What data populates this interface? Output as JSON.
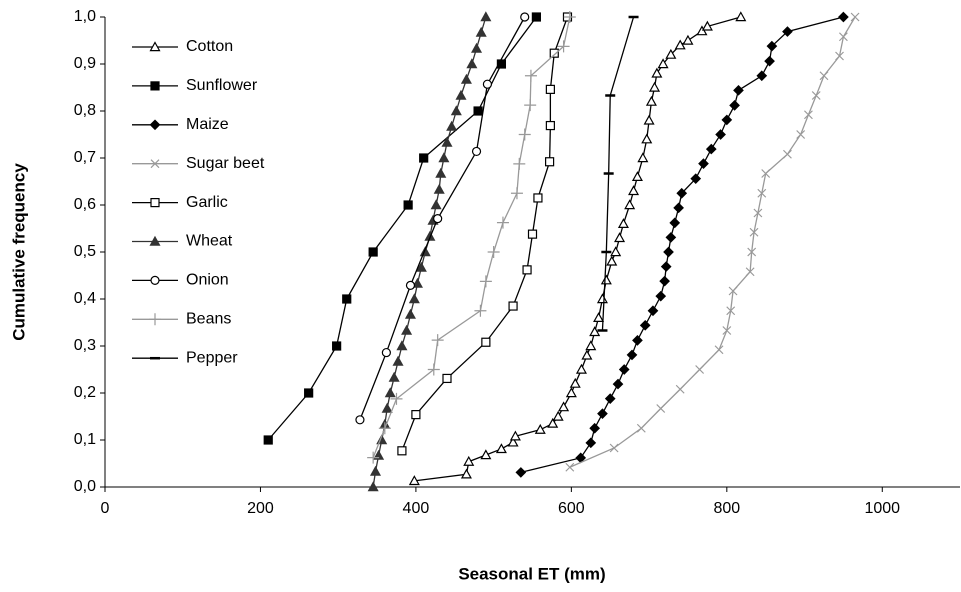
{
  "chart_data": {
    "type": "line",
    "xlabel": "Seasonal ET (mm)",
    "ylabel": "Cumulative frequency",
    "xlim": [
      0,
      1100
    ],
    "xticks": [
      0,
      200,
      400,
      600,
      800,
      1000
    ],
    "ylim": [
      0,
      1
    ],
    "yticks": [
      {
        "value": 0,
        "label": "0,0"
      },
      {
        "value": 0.1,
        "label": "0,1"
      },
      {
        "value": 0.2,
        "label": "0,2"
      },
      {
        "value": 0.3,
        "label": "0,3"
      },
      {
        "value": 0.4,
        "label": "0,4"
      },
      {
        "value": 0.5,
        "label": "0,5"
      },
      {
        "value": 0.6,
        "label": "0,6"
      },
      {
        "value": 0.7,
        "label": "0,7"
      },
      {
        "value": 0.8,
        "label": "0,8"
      },
      {
        "value": 0.9,
        "label": "0,9"
      },
      {
        "value": 1,
        "label": "1,0"
      }
    ],
    "grid": false,
    "legend": "top-left",
    "series": [
      {
        "name": "Cotton",
        "color": "#000000",
        "marker": "triangle-open",
        "x": [
          398,
          465,
          468,
          490,
          510,
          525,
          528,
          560,
          576,
          583,
          590,
          600,
          605,
          613,
          620,
          625,
          630,
          635,
          640,
          645,
          652,
          657,
          662,
          667,
          675,
          680,
          685,
          692,
          697,
          700,
          703,
          707,
          710,
          718,
          728,
          740,
          750,
          768,
          775,
          818
        ],
        "values": [
          0.013,
          0.027,
          0.054,
          0.068,
          0.081,
          0.095,
          0.108,
          0.122,
          0.135,
          0.15,
          0.17,
          0.2,
          0.22,
          0.25,
          0.28,
          0.3,
          0.33,
          0.36,
          0.4,
          0.44,
          0.48,
          0.5,
          0.53,
          0.56,
          0.6,
          0.63,
          0.66,
          0.7,
          0.74,
          0.78,
          0.82,
          0.85,
          0.88,
          0.9,
          0.92,
          0.94,
          0.95,
          0.97,
          0.98,
          1.0
        ]
      },
      {
        "name": "Sunflower",
        "color": "#000000",
        "marker": "square",
        "x": [
          210,
          262,
          298,
          311,
          345,
          390,
          410,
          480,
          510,
          555
        ],
        "values": [
          0.1,
          0.2,
          0.3,
          0.4,
          0.5,
          0.6,
          0.7,
          0.8,
          0.9,
          1.0
        ]
      },
      {
        "name": "Maize",
        "color": "#000000",
        "marker": "diamond",
        "x": [
          535,
          612,
          625,
          630,
          640,
          650,
          660,
          668,
          678,
          685,
          695,
          705,
          715,
          720,
          722,
          725,
          728,
          733,
          738,
          742,
          760,
          770,
          780,
          792,
          800,
          810,
          815,
          845,
          855,
          858,
          878,
          950
        ],
        "values": [
          0.031,
          0.062,
          0.094,
          0.125,
          0.156,
          0.188,
          0.219,
          0.25,
          0.281,
          0.312,
          0.344,
          0.375,
          0.406,
          0.438,
          0.469,
          0.5,
          0.531,
          0.562,
          0.594,
          0.625,
          0.656,
          0.688,
          0.719,
          0.75,
          0.781,
          0.812,
          0.844,
          0.875,
          0.906,
          0.938,
          0.969,
          1.0
        ]
      },
      {
        "name": "Sugar beet",
        "color": "#999999",
        "marker": "x",
        "x": [
          598,
          655,
          690,
          715,
          740,
          765,
          790,
          800,
          805,
          808,
          830,
          832,
          835,
          840,
          845,
          850,
          878,
          895,
          905,
          915,
          925,
          945,
          950,
          965
        ],
        "values": [
          0.042,
          0.083,
          0.125,
          0.167,
          0.208,
          0.25,
          0.292,
          0.333,
          0.375,
          0.417,
          0.458,
          0.5,
          0.542,
          0.583,
          0.625,
          0.667,
          0.708,
          0.75,
          0.792,
          0.833,
          0.875,
          0.917,
          0.958,
          1.0
        ]
      },
      {
        "name": "Garlic",
        "color": "#000000",
        "marker": "square-open",
        "x": [
          382,
          400,
          440,
          490,
          525,
          543,
          550,
          557,
          572,
          573,
          573,
          578,
          595
        ],
        "values": [
          0.077,
          0.154,
          0.231,
          0.308,
          0.385,
          0.462,
          0.538,
          0.615,
          0.692,
          0.769,
          0.846,
          0.923,
          1.0
        ]
      },
      {
        "name": "Wheat",
        "color": "#333333",
        "marker": "triangle",
        "x": [
          345,
          348,
          352,
          356,
          360,
          363,
          367,
          372,
          377,
          382,
          388,
          393,
          398,
          402,
          407,
          412,
          418,
          422,
          426,
          430,
          432,
          436,
          440,
          446,
          452,
          458,
          465,
          472,
          478,
          484,
          490
        ],
        "values": [
          0,
          0.033,
          0.067,
          0.1,
          0.133,
          0.167,
          0.2,
          0.233,
          0.267,
          0.3,
          0.333,
          0.367,
          0.4,
          0.433,
          0.467,
          0.5,
          0.533,
          0.567,
          0.6,
          0.633,
          0.667,
          0.7,
          0.733,
          0.767,
          0.8,
          0.833,
          0.867,
          0.9,
          0.933,
          0.967,
          1.0
        ]
      },
      {
        "name": "Onion",
        "color": "#000000",
        "marker": "circle-open",
        "x": [
          328,
          362,
          393,
          428,
          478,
          492,
          540
        ],
        "values": [
          0.143,
          0.286,
          0.429,
          0.571,
          0.714,
          0.857,
          1.0
        ]
      },
      {
        "name": "Beans",
        "color": "#999999",
        "marker": "plus",
        "x": [
          345,
          360,
          375,
          423,
          428,
          483,
          490,
          500,
          512,
          530,
          533,
          540,
          547,
          548,
          590,
          598
        ],
        "values": [
          0.0625,
          0.125,
          0.1875,
          0.25,
          0.3125,
          0.375,
          0.4375,
          0.5,
          0.5625,
          0.625,
          0.6875,
          0.75,
          0.8125,
          0.875,
          0.9375,
          1.0
        ]
      },
      {
        "name": "Pepper",
        "color": "#000000",
        "marker": "dash",
        "x": [
          640,
          645,
          648,
          650,
          680
        ],
        "values": [
          0.333,
          0.5,
          0.667,
          0.833,
          1.0
        ]
      }
    ]
  }
}
